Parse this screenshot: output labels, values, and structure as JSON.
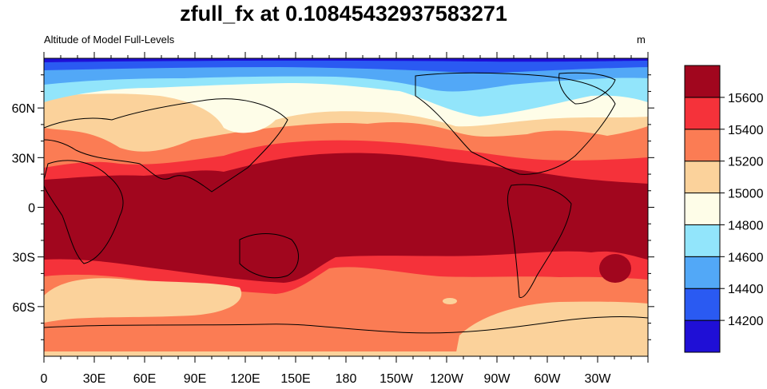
{
  "chart_data": {
    "type": "heatmap",
    "title": "zfull_fx at 0.10845432937583271",
    "left_subtitle": "Altitude of Model Full-Levels",
    "right_subtitle": "m",
    "x_ticks": [
      "0",
      "30E",
      "60E",
      "90E",
      "120E",
      "150E",
      "180",
      "150W",
      "120W",
      "90W",
      "60W",
      "30W"
    ],
    "y_ticks": [
      "60N",
      "30N",
      "0",
      "30S",
      "60S"
    ],
    "xlim": [
      0,
      360
    ],
    "ylim": [
      -90,
      90
    ],
    "colorbar_levels": [
      "14200",
      "14400",
      "14600",
      "14800",
      "15000",
      "15200",
      "15400",
      "15600"
    ],
    "colorbar_colors": [
      "#1f0fd6",
      "#2a5af2",
      "#52a8f7",
      "#92e5fb",
      "#fefde8",
      "#fbd29b",
      "#fb7c54",
      "#f5323a",
      "#a1061e"
    ],
    "units": "m"
  }
}
